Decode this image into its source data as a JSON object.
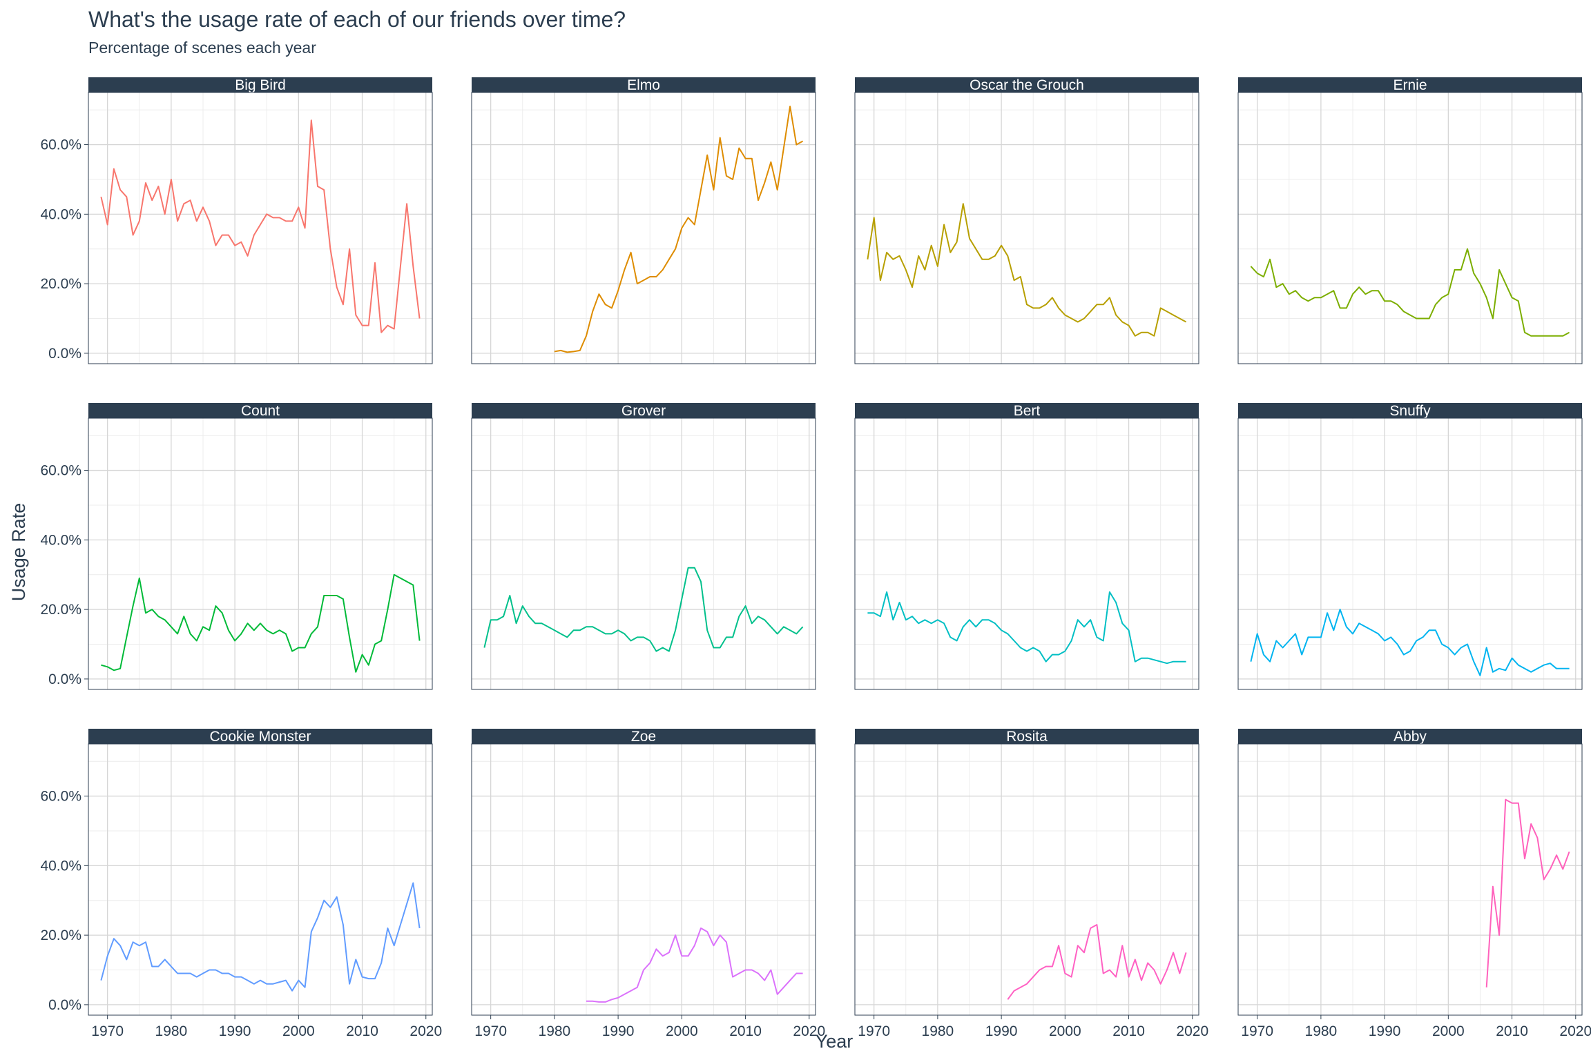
{
  "title": "What's the usage rate of each of our friends over time?",
  "subtitle": "Percentage of scenes each year",
  "chart_data": {
    "type": "line",
    "facet_layout": "4 columns x 3 rows (small multiples, shared axes)",
    "xlabel": "Year",
    "ylabel": "Usage Rate",
    "xlim": [
      1967,
      2021
    ],
    "ylim": [
      -3,
      75
    ],
    "x_ticks": [
      1970,
      1980,
      1990,
      2000,
      2010,
      2020
    ],
    "y_ticks": [
      0,
      20,
      40,
      60
    ],
    "y_tick_labels": [
      "0.0%",
      "20.0%",
      "40.0%",
      "60.0%"
    ],
    "grid": true,
    "strip_color": "#2c3e50",
    "series": [
      {
        "name": "Big Bird",
        "color": "#F8766D",
        "x": [
          1969,
          1970,
          1971,
          1972,
          1973,
          1974,
          1975,
          1976,
          1977,
          1978,
          1979,
          1980,
          1981,
          1982,
          1983,
          1984,
          1985,
          1986,
          1987,
          1988,
          1989,
          1990,
          1991,
          1992,
          1993,
          1994,
          1995,
          1996,
          1997,
          1998,
          1999,
          2000,
          2001,
          2002,
          2003,
          2004,
          2005,
          2006,
          2007,
          2008,
          2009,
          2010,
          2011,
          2012,
          2013,
          2014,
          2015,
          2016,
          2017,
          2018,
          2019
        ],
        "y": [
          45,
          37,
          53,
          47,
          45,
          34,
          38,
          49,
          44,
          48,
          40,
          50,
          38,
          43,
          44,
          38,
          42,
          38,
          31,
          34,
          34,
          31,
          32,
          28,
          34,
          37,
          40,
          39,
          39,
          38,
          38,
          42,
          36,
          67,
          48,
          47,
          30,
          19,
          14,
          30,
          11,
          8,
          8,
          26,
          6,
          8,
          7,
          25,
          43,
          25,
          10
        ]
      },
      {
        "name": "Elmo",
        "color": "#DE8C00",
        "x": [
          1980,
          1981,
          1982,
          1983,
          1984,
          1985,
          1986,
          1987,
          1988,
          1989,
          1990,
          1991,
          1992,
          1993,
          1994,
          1995,
          1996,
          1997,
          1998,
          1999,
          2000,
          2001,
          2002,
          2003,
          2004,
          2005,
          2006,
          2007,
          2008,
          2009,
          2010,
          2011,
          2012,
          2013,
          2014,
          2015,
          2016,
          2017,
          2018,
          2019
        ],
        "y": [
          0.5,
          0.8,
          0.3,
          0.5,
          0.8,
          5,
          12,
          17,
          14,
          13,
          18,
          24,
          29,
          20,
          21,
          22,
          22,
          24,
          27,
          30,
          36,
          39,
          37,
          47,
          57,
          47,
          62,
          51,
          50,
          59,
          56,
          56,
          44,
          49,
          55,
          47,
          59,
          71,
          60,
          61
        ]
      },
      {
        "name": "Oscar the Grouch",
        "color": "#B79F00",
        "x": [
          1969,
          1970,
          1971,
          1972,
          1973,
          1974,
          1975,
          1976,
          1977,
          1978,
          1979,
          1980,
          1981,
          1982,
          1983,
          1984,
          1985,
          1986,
          1987,
          1988,
          1989,
          1990,
          1991,
          1992,
          1993,
          1994,
          1995,
          1996,
          1997,
          1998,
          1999,
          2000,
          2001,
          2002,
          2003,
          2004,
          2005,
          2006,
          2007,
          2008,
          2009,
          2010,
          2011,
          2012,
          2013,
          2014,
          2015,
          2016,
          2017,
          2018,
          2019
        ],
        "y": [
          27,
          39,
          21,
          29,
          27,
          28,
          24,
          19,
          28,
          24,
          31,
          25,
          37,
          29,
          32,
          43,
          33,
          30,
          27,
          27,
          28,
          31,
          28,
          21,
          22,
          14,
          13,
          13,
          14,
          16,
          13,
          11,
          10,
          9,
          10,
          12,
          14,
          14,
          16,
          11,
          9,
          8,
          5,
          6,
          6,
          5,
          13,
          12,
          11,
          10,
          9
        ]
      },
      {
        "name": "Ernie",
        "color": "#7CAE00",
        "x": [
          1969,
          1970,
          1971,
          1972,
          1973,
          1974,
          1975,
          1976,
          1977,
          1978,
          1979,
          1980,
          1981,
          1982,
          1983,
          1984,
          1985,
          1986,
          1987,
          1988,
          1989,
          1990,
          1991,
          1992,
          1993,
          1994,
          1995,
          1996,
          1997,
          1998,
          1999,
          2000,
          2001,
          2002,
          2003,
          2004,
          2005,
          2006,
          2007,
          2008,
          2009,
          2010,
          2011,
          2012,
          2013,
          2014,
          2015,
          2016,
          2017,
          2018,
          2019
        ],
        "y": [
          25,
          23,
          22,
          27,
          19,
          20,
          17,
          18,
          16,
          15,
          16,
          16,
          17,
          18,
          13,
          13,
          17,
          19,
          17,
          18,
          18,
          15,
          15,
          14,
          12,
          11,
          10,
          10,
          10,
          14,
          16,
          17,
          24,
          24,
          30,
          23,
          20,
          16,
          10,
          24,
          20,
          16,
          15,
          6,
          5,
          5,
          5,
          5,
          5,
          5,
          6
        ]
      },
      {
        "name": "Count",
        "color": "#00BA38",
        "x": [
          1969,
          1970,
          1971,
          1972,
          1973,
          1974,
          1975,
          1976,
          1977,
          1978,
          1979,
          1980,
          1981,
          1982,
          1983,
          1984,
          1985,
          1986,
          1987,
          1988,
          1989,
          1990,
          1991,
          1992,
          1993,
          1994,
          1995,
          1996,
          1997,
          1998,
          1999,
          2000,
          2001,
          2002,
          2003,
          2004,
          2005,
          2006,
          2007,
          2008,
          2009,
          2010,
          2011,
          2012,
          2013,
          2014,
          2015,
          2016,
          2017,
          2018,
          2019
        ],
        "y": [
          4,
          3.5,
          2.5,
          3,
          12,
          21,
          29,
          19,
          20,
          18,
          17,
          15,
          13,
          18,
          13,
          11,
          15,
          14,
          21,
          19,
          14,
          11,
          13,
          16,
          14,
          16,
          14,
          13,
          14,
          13,
          8,
          9,
          9,
          13,
          15,
          24,
          24,
          24,
          23,
          12,
          2,
          7,
          4,
          10,
          11,
          20,
          30,
          29,
          28,
          27,
          11
        ]
      },
      {
        "name": "Grover",
        "color": "#00C08B",
        "x": [
          1969,
          1970,
          1971,
          1972,
          1973,
          1974,
          1975,
          1976,
          1977,
          1978,
          1979,
          1980,
          1981,
          1982,
          1983,
          1984,
          1985,
          1986,
          1987,
          1988,
          1989,
          1990,
          1991,
          1992,
          1993,
          1994,
          1995,
          1996,
          1997,
          1998,
          1999,
          2000,
          2001,
          2002,
          2003,
          2004,
          2005,
          2006,
          2007,
          2008,
          2009,
          2010,
          2011,
          2012,
          2013,
          2014,
          2015,
          2016,
          2017,
          2018,
          2019
        ],
        "y": [
          9,
          17,
          17,
          18,
          24,
          16,
          21,
          18,
          16,
          16,
          15,
          14,
          13,
          12,
          14,
          14,
          15,
          15,
          14,
          13,
          13,
          14,
          13,
          11,
          12,
          12,
          11,
          8,
          9,
          8,
          14,
          23,
          32,
          32,
          28,
          14,
          9,
          9,
          12,
          12,
          18,
          21,
          16,
          18,
          17,
          15,
          13,
          15,
          14,
          13,
          15
        ]
      },
      {
        "name": "Bert",
        "color": "#00BFC4",
        "x": [
          1969,
          1970,
          1971,
          1972,
          1973,
          1974,
          1975,
          1976,
          1977,
          1978,
          1979,
          1980,
          1981,
          1982,
          1983,
          1984,
          1985,
          1986,
          1987,
          1988,
          1989,
          1990,
          1991,
          1992,
          1993,
          1994,
          1995,
          1996,
          1997,
          1998,
          1999,
          2000,
          2001,
          2002,
          2003,
          2004,
          2005,
          2006,
          2007,
          2008,
          2009,
          2010,
          2011,
          2012,
          2013,
          2014,
          2015,
          2016,
          2017,
          2018,
          2019
        ],
        "y": [
          19,
          19,
          18,
          25,
          17,
          22,
          17,
          18,
          16,
          17,
          16,
          17,
          16,
          12,
          11,
          15,
          17,
          15,
          17,
          17,
          16,
          14,
          13,
          11,
          9,
          8,
          9,
          8,
          5,
          7,
          7,
          8,
          11,
          17,
          15,
          17,
          12,
          11,
          25,
          22,
          16,
          14,
          5,
          6,
          6,
          5.5,
          5,
          4.5,
          5,
          5,
          5
        ]
      },
      {
        "name": "Snuffy",
        "color": "#00B4F0",
        "x": [
          1969,
          1970,
          1971,
          1972,
          1973,
          1974,
          1975,
          1976,
          1977,
          1978,
          1979,
          1980,
          1981,
          1982,
          1983,
          1984,
          1985,
          1986,
          1987,
          1988,
          1989,
          1990,
          1991,
          1992,
          1993,
          1994,
          1995,
          1996,
          1997,
          1998,
          1999,
          2000,
          2001,
          2002,
          2003,
          2004,
          2005,
          2006,
          2007,
          2008,
          2009,
          2010,
          2011,
          2012,
          2013,
          2014,
          2015,
          2016,
          2017,
          2018,
          2019
        ],
        "y": [
          5,
          13,
          7,
          5,
          11,
          9,
          11,
          13,
          7,
          12,
          12,
          12,
          19,
          14,
          20,
          15,
          13,
          16,
          15,
          14,
          13,
          11,
          12,
          10,
          7,
          8,
          11,
          12,
          14,
          14,
          10,
          9,
          7,
          9,
          10,
          5,
          1,
          9,
          2,
          3,
          2.5,
          6,
          4,
          3,
          2,
          3,
          4,
          4.5,
          3,
          3,
          3
        ]
      },
      {
        "name": "Cookie Monster",
        "color": "#619CFF",
        "x": [
          1969,
          1970,
          1971,
          1972,
          1973,
          1974,
          1975,
          1976,
          1977,
          1978,
          1979,
          1980,
          1981,
          1982,
          1983,
          1984,
          1985,
          1986,
          1987,
          1988,
          1989,
          1990,
          1991,
          1992,
          1993,
          1994,
          1995,
          1996,
          1997,
          1998,
          1999,
          2000,
          2001,
          2002,
          2003,
          2004,
          2005,
          2006,
          2007,
          2008,
          2009,
          2010,
          2011,
          2012,
          2013,
          2014,
          2015,
          2016,
          2017,
          2018,
          2019
        ],
        "y": [
          7,
          14,
          19,
          17,
          13,
          18,
          17,
          18,
          11,
          11,
          13,
          11,
          9,
          9,
          9,
          8,
          9,
          10,
          10,
          9,
          9,
          8,
          8,
          7,
          6,
          7,
          6,
          6,
          6.5,
          7,
          4,
          7,
          5,
          21,
          25,
          30,
          28,
          31,
          23,
          6,
          13,
          8,
          7.5,
          7.5,
          12,
          22,
          17,
          23,
          29,
          35,
          22
        ]
      },
      {
        "name": "Zoe",
        "color": "#DB72FB",
        "x": [
          1985,
          1986,
          1987,
          1988,
          1989,
          1990,
          1991,
          1992,
          1993,
          1994,
          1995,
          1996,
          1997,
          1998,
          1999,
          2000,
          2001,
          2002,
          2003,
          2004,
          2005,
          2006,
          2007,
          2008,
          2009,
          2010,
          2011,
          2012,
          2013,
          2014,
          2015,
          2016,
          2017,
          2018,
          2019
        ],
        "y": [
          1,
          1,
          0.8,
          0.8,
          1.5,
          2,
          3,
          4,
          5,
          10,
          12,
          16,
          14,
          15,
          20,
          14,
          14,
          17,
          22,
          21,
          17,
          20,
          18,
          8,
          9,
          10,
          10,
          9,
          7,
          10,
          3,
          5,
          7,
          9,
          9
        ]
      },
      {
        "name": "Rosita",
        "color": "#FF61C3",
        "x": [
          1991,
          1992,
          1993,
          1994,
          1995,
          1996,
          1997,
          1998,
          1999,
          2000,
          2001,
          2002,
          2003,
          2004,
          2005,
          2006,
          2007,
          2008,
          2009,
          2010,
          2011,
          2012,
          2013,
          2014,
          2015,
          2016,
          2017,
          2018,
          2019
        ],
        "y": [
          1.5,
          4,
          5,
          6,
          8,
          10,
          11,
          11,
          17,
          9,
          8,
          17,
          15,
          22,
          23,
          9,
          10,
          8,
          17,
          8,
          13,
          7,
          12,
          10,
          6,
          10,
          15,
          9,
          15
        ]
      },
      {
        "name": "Abby",
        "color": "#FF62BC",
        "x": [
          2006,
          2007,
          2008,
          2009,
          2010,
          2011,
          2012,
          2013,
          2014,
          2015,
          2016,
          2017,
          2018,
          2019
        ],
        "y": [
          5,
          34,
          20,
          59,
          58,
          58,
          42,
          52,
          48,
          36,
          39,
          43,
          39,
          44
        ]
      }
    ]
  }
}
